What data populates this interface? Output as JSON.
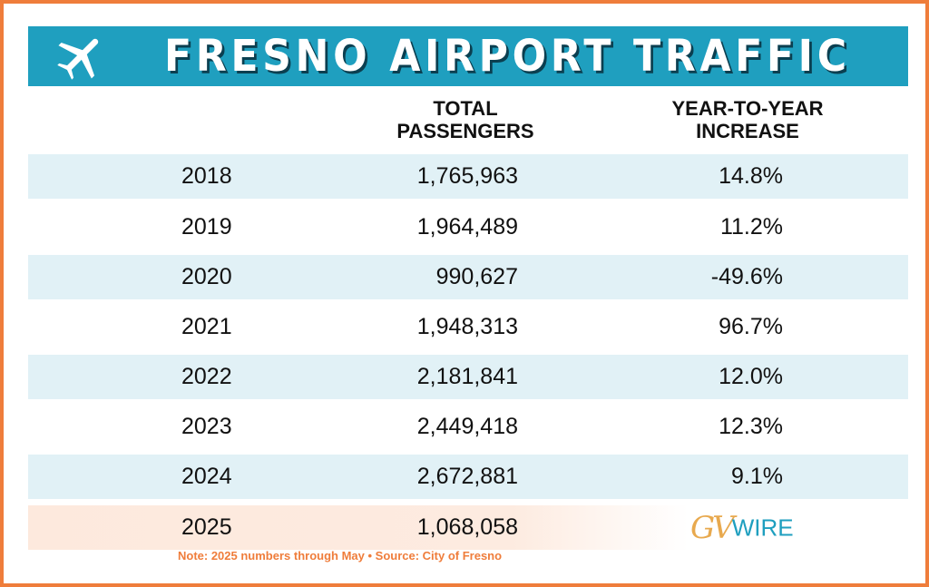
{
  "header": {
    "title": "FRESNO AIRPORT TRAFFIC"
  },
  "chart_data": {
    "type": "table",
    "title": "FRESNO AIRPORT TRAFFIC",
    "columns": [
      "",
      "TOTAL PASSENGERS",
      "YEAR-TO-YEAR INCREASE"
    ],
    "rows": [
      {
        "year": "2018",
        "passengers": "1,765,963",
        "increase": "14.8%"
      },
      {
        "year": "2019",
        "passengers": "1,964,489",
        "increase": "11.2%"
      },
      {
        "year": "2020",
        "passengers": "990,627",
        "increase": "-49.6%"
      },
      {
        "year": "2021",
        "passengers": "1,948,313",
        "increase": "96.7%"
      },
      {
        "year": "2022",
        "passengers": "2,181,841",
        "increase": "12.0%"
      },
      {
        "year": "2023",
        "passengers": "2,449,418",
        "increase": "12.3%"
      },
      {
        "year": "2024",
        "passengers": "2,672,881",
        "increase": "9.1%"
      },
      {
        "year": "2025",
        "passengers": "1,068,058",
        "increase": ""
      }
    ],
    "note": "Note: 2025 numbers through May • Source: City of Fresno"
  },
  "column_headers": {
    "passengers_line1": "TOTAL",
    "passengers_line2": "PASSENGERS",
    "increase_line1": "YEAR-TO-YEAR",
    "increase_line2": "INCREASE"
  },
  "logo": {
    "gv": "GV",
    "wire": "WIRE"
  },
  "colors": {
    "banner": "#1f9fbf",
    "border": "#ef7d3b",
    "row_shade": "#e1f1f6",
    "highlight_row": "#fde9dd",
    "note": "#ef7d3b"
  },
  "icons": [
    "airplane-icon"
  ]
}
